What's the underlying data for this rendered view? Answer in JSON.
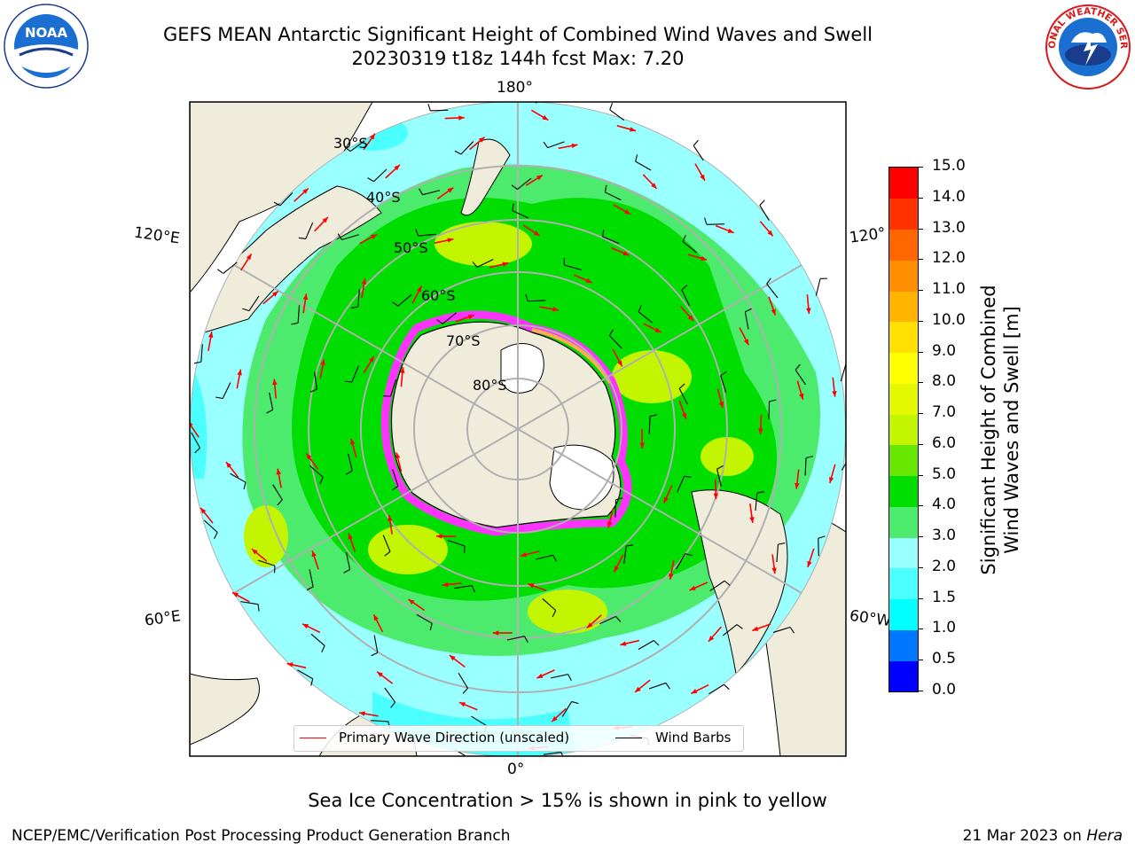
{
  "header": {
    "title_line1": "GEFS MEAN Antarctic Significant Height of Combined Wind Waves and Swell",
    "title_line2": "20230319 t18z 144h fcst   Max: 7.20"
  },
  "map": {
    "projection": "south polar stereographic",
    "longitude_labels": {
      "top": "180°",
      "bottom": "0°",
      "left_upper": "120°E",
      "left_lower": "60°E",
      "right_upper": "120°",
      "right_lower": "60°W"
    },
    "latitude_labels": [
      "30°S",
      "40°S",
      "50°S",
      "60°S",
      "70°S",
      "80°S"
    ],
    "land_color": "#efecdc",
    "ocean_colors": {
      "light_cyan": "#99ffff",
      "cyan": "#4cffff",
      "light_green": "#4ceb6e",
      "green": "#00dd00",
      "yellow_green": "#c3f500"
    },
    "sea_ice_colors": [
      "#ff33ff",
      "#ffaa55",
      "#ffee66"
    ],
    "wave_direction_color": "#ff0000",
    "wind_barb_color": "#000000"
  },
  "legend": {
    "primary_wave": "Primary Wave Direction (unscaled)",
    "wind_barbs": "Wind Barbs"
  },
  "colorbar": {
    "label_line1": "Significant Height of Combined",
    "label_line2": "Wind Waves and Swell [m]",
    "ticks": [
      "0.0",
      "0.5",
      "1.0",
      "1.5",
      "2.0",
      "3.0",
      "4.0",
      "5.0",
      "6.0",
      "7.0",
      "8.0",
      "9.0",
      "10.0",
      "11.0",
      "12.0",
      "13.0",
      "14.0",
      "15.0"
    ],
    "colors": [
      "#0000ff",
      "#0077ff",
      "#00ffff",
      "#4cffff",
      "#99ffff",
      "#4ceb6e",
      "#00dd00",
      "#66e600",
      "#c3f500",
      "#e4f800",
      "#ffff00",
      "#ffe000",
      "#ffb400",
      "#ff8f00",
      "#ff6600",
      "#ff3300",
      "#ff0000"
    ]
  },
  "footnote": "Sea Ice Concentration > 15% is shown in pink to yellow",
  "credits": {
    "left": "NCEP/EMC/Verification Post Processing Product Generation Branch",
    "right_prefix": "21 Mar 2023 on ",
    "right_host": "Hera"
  },
  "logos": {
    "noaa_text": "NOAA",
    "nws_text": "NATIONAL WEATHER SERVICE"
  }
}
